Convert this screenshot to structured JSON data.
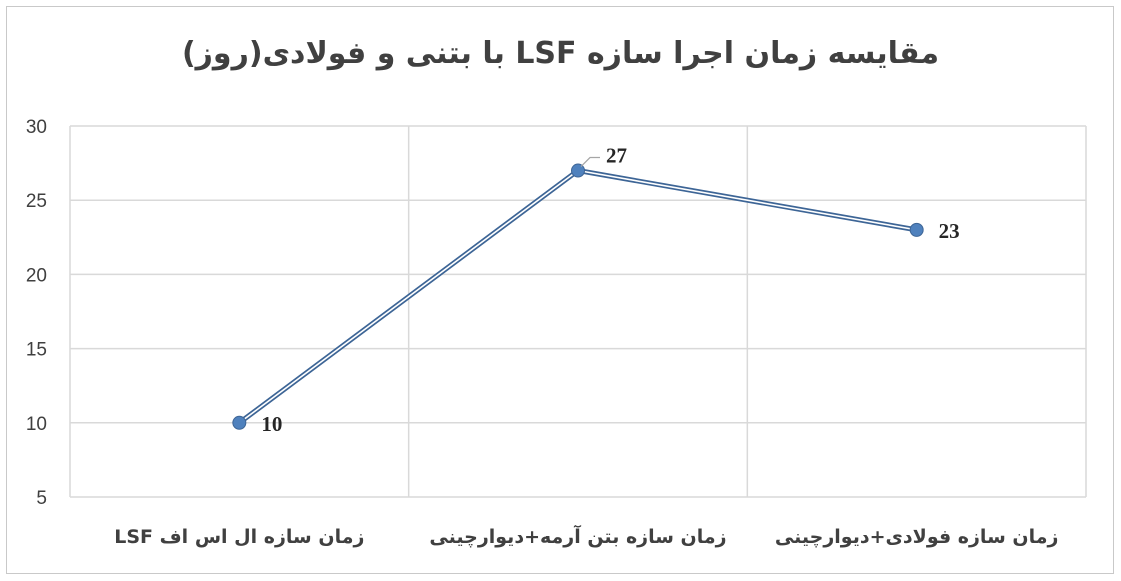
{
  "chart_data": {
    "type": "line",
    "title": "مقایسه زمان اجرا سازه LSF با بتنی و فولادی(روز)",
    "categories": [
      "زمان سازه ال اس اف LSF",
      "زمان سازه بتن آرمه+دیوارچینی",
      "زمان سازه فولادی+دیوارچینی"
    ],
    "series": [
      {
        "values": [
          10,
          27,
          23
        ]
      }
    ],
    "data_labels": [
      "10",
      "27",
      "23"
    ],
    "ylim": [
      5,
      30
    ],
    "yticks": [
      5,
      10,
      15,
      20,
      25,
      30
    ],
    "xlabel": "",
    "ylabel": "",
    "grid": true,
    "legend": "none",
    "colors": {
      "line": "#4a7ab0",
      "line_outline": "#3d6596",
      "marker": "#4f81bd",
      "grid": "#d9d9d9"
    }
  }
}
